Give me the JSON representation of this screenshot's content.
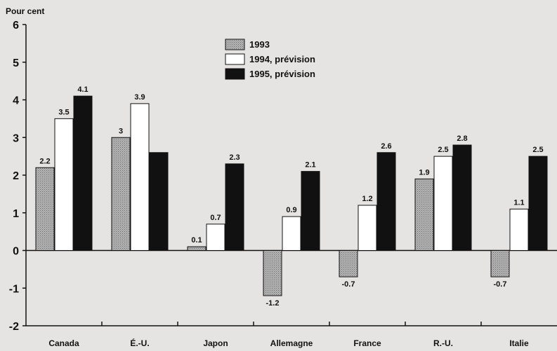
{
  "chart_data": {
    "type": "bar",
    "ylabel": "Pour cent",
    "xlabel": "",
    "title": "",
    "ylim": [
      -2,
      6
    ],
    "yticks": [
      "-2",
      "-1",
      "0",
      "1",
      "2",
      "3",
      "4",
      "5",
      "6"
    ],
    "categories": [
      "Canada",
      "É.-U.",
      "Japon",
      "Allemagne",
      "France",
      "R.-U.",
      "Italie"
    ],
    "series": [
      {
        "name": "1993",
        "values": [
          2.2,
          3,
          0.1,
          -1.2,
          -0.7,
          1.9,
          -0.7
        ],
        "labels": [
          "2.2",
          "3",
          "0.1",
          "-1.2",
          "-0.7",
          "1.9",
          "-0.7"
        ],
        "color": "#a6a6a6"
      },
      {
        "name": "1994, prévision",
        "values": [
          3.5,
          3.9,
          0.7,
          0.9,
          1.2,
          2.5,
          1.1
        ],
        "labels": [
          "3.5",
          "3.9",
          "0.7",
          "0.9",
          "1.2",
          "2.5",
          "1.1"
        ],
        "color": "#ffffff"
      },
      {
        "name": "1995, prévision",
        "values": [
          4.1,
          2.6,
          2.3,
          2.1,
          2.6,
          2.8,
          2.5
        ],
        "labels": [
          "4.1",
          "",
          "2.3",
          "2.1",
          "2.6",
          "2.8",
          "2.5"
        ],
        "color": "#111111"
      }
    ],
    "grid": false,
    "legend": "top-center"
  }
}
